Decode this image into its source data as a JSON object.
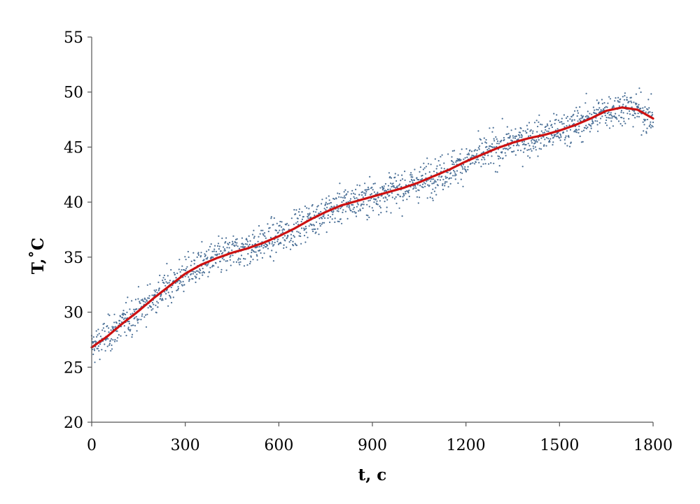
{
  "chart_data": {
    "type": "scatter",
    "title": "",
    "xlabel": "t, c",
    "ylabel": "T,˚C",
    "xlim": [
      0,
      1800
    ],
    "ylim": [
      20,
      55
    ],
    "xticks": [
      0,
      300,
      600,
      900,
      1200,
      1500,
      1800
    ],
    "yticks": [
      20,
      25,
      30,
      35,
      40,
      45,
      50,
      55
    ],
    "xtick_labels": [
      "0",
      "300",
      "600",
      "900",
      "1200",
      "1500",
      "1800"
    ],
    "ytick_labels": [
      "20",
      "25",
      "30",
      "35",
      "40",
      "45",
      "50",
      "55"
    ],
    "grid": false,
    "legend": "none",
    "series": [
      {
        "kind": "scatter",
        "color": "#4a6f96",
        "x_range": [
          0,
          1800
        ],
        "n_points": 1800,
        "noise_std": 0.8
      },
      {
        "kind": "line",
        "color": "#cc1111",
        "x": [
          0,
          50,
          100,
          150,
          200,
          250,
          300,
          350,
          400,
          450,
          500,
          550,
          600,
          650,
          700,
          750,
          800,
          850,
          900,
          950,
          1000,
          1050,
          1100,
          1150,
          1200,
          1250,
          1300,
          1350,
          1400,
          1450,
          1500,
          1550,
          1600,
          1650,
          1700,
          1750,
          1800
        ],
        "y": [
          26.8,
          27.8,
          29.0,
          30.1,
          31.3,
          32.4,
          33.5,
          34.3,
          34.9,
          35.4,
          35.8,
          36.3,
          36.9,
          37.6,
          38.4,
          39.1,
          39.7,
          40.1,
          40.5,
          40.9,
          41.3,
          41.8,
          42.4,
          43.0,
          43.7,
          44.3,
          44.9,
          45.4,
          45.8,
          46.1,
          46.5,
          47.0,
          47.6,
          48.3,
          48.6,
          48.4,
          47.6
        ]
      }
    ]
  }
}
